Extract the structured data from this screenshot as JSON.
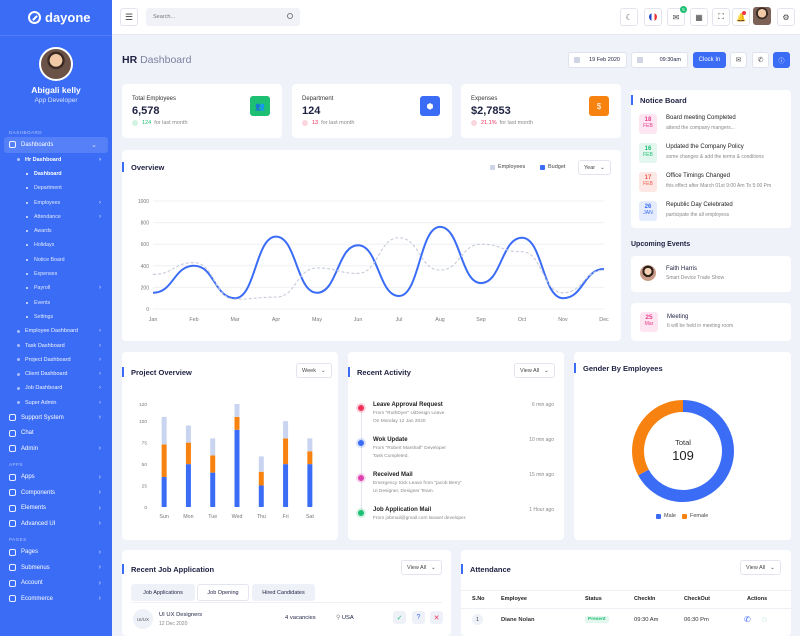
{
  "brand": {
    "name": "dayone"
  },
  "profile": {
    "name": "Abigali kelly",
    "role": "App Developer"
  },
  "sidebar": {
    "sections": {
      "dashboard": "DASHBOARD",
      "apps": "APPS",
      "pages": "PAGES"
    },
    "dashboards": "Dashboards",
    "hr_dashboard": "Hr Dashboard",
    "hr_items": [
      "Dashboard",
      "Department",
      "Employees",
      "Attendance",
      "Awards",
      "Holidays",
      "Notice Board",
      "Expenses",
      "Payroll",
      "Events",
      "Settings"
    ],
    "other_dash": [
      "Employee Dashboard",
      "Task Dashboard",
      "Project Dashboard",
      "Client Dashboard",
      "Job Dashboard",
      "Super Admin"
    ],
    "main_items": [
      "Support System",
      "Chat",
      "Admin"
    ],
    "app_items": [
      "Apps",
      "Components",
      "Elements",
      "Advanced UI"
    ],
    "page_items": [
      "Pages",
      "Submenus",
      "Account",
      "Ecommerce"
    ]
  },
  "topbar": {
    "search_placeholder": "Search...",
    "mail_badge": "5"
  },
  "header": {
    "title": "HR",
    "subtitle": "Dashboard",
    "date": "19 Feb 2020",
    "time": "09:30am",
    "clockin": "Clock In"
  },
  "stats": [
    {
      "label": "Total Employees",
      "value": "6,578",
      "change": "124",
      "period": "for last month",
      "color": "#1dbf73"
    },
    {
      "label": "Department",
      "value": "124",
      "change": "13",
      "period": "for last month",
      "color": "#3a6cf6"
    },
    {
      "label": "Expenses",
      "value": "$2,7853",
      "change": "21.1%",
      "period": "for last month",
      "color": "#f7820f"
    }
  ],
  "overview": {
    "title": "Overview",
    "legend": [
      "Employees",
      "Budget"
    ],
    "select": "Year"
  },
  "chart_data": [
    {
      "type": "line",
      "title": "Overview",
      "categories": [
        "Jan",
        "Feb",
        "Mar",
        "Apr",
        "May",
        "Jun",
        "Jul",
        "Aug",
        "Sep",
        "Oct",
        "Nov",
        "Dec"
      ],
      "ylim": [
        0,
        1000
      ],
      "yticks": [
        0,
        200,
        400,
        600,
        800,
        1000
      ],
      "series": [
        {
          "name": "Budget",
          "style": "solid",
          "values": [
            150,
            400,
            100,
            670,
            150,
            590,
            120,
            760,
            240,
            660,
            100,
            370
          ]
        },
        {
          "name": "Employees",
          "style": "dashed",
          "values": [
            320,
            430,
            90,
            110,
            380,
            330,
            660,
            360,
            600,
            530,
            150,
            360
          ]
        }
      ]
    },
    {
      "type": "bar",
      "title": "Project Overview",
      "categories": [
        "Sun",
        "Mon",
        "Tue",
        "Wed",
        "Thu",
        "Fri",
        "Sat"
      ],
      "ylim": [
        0,
        120
      ],
      "yticks": [
        0,
        25,
        50,
        75,
        100,
        120
      ],
      "series": [
        {
          "name": "blue",
          "values": [
            35,
            50,
            40,
            90,
            25,
            50,
            50
          ]
        },
        {
          "name": "orange",
          "values": [
            38,
            25,
            20,
            15,
            16,
            30,
            15
          ]
        },
        {
          "name": "light",
          "values": [
            32,
            20,
            20,
            15,
            18,
            20,
            15
          ]
        }
      ]
    },
    {
      "type": "pie",
      "title": "Gender By Employees",
      "center_label": "Total",
      "center_value": "109",
      "series": [
        {
          "name": "Male",
          "value": 73
        },
        {
          "name": "Female",
          "value": 36
        }
      ]
    }
  ],
  "project": {
    "title": "Project Overview",
    "select": "Week"
  },
  "activity": {
    "title": "Recent Activity",
    "select": "View All",
    "items": [
      {
        "title": "Leave Approval Request",
        "line1": "From \"RuthDyer\" UiDesign Leave",
        "line2": "On Monday 12 Jan 2020",
        "time": "6 min ago",
        "color": "#f0325b"
      },
      {
        "title": "Wok Update",
        "line1": "From \"Robert Marshall\" Developer",
        "line2": "Task Completed.",
        "time": "10 min ago",
        "color": "#3a6cf6"
      },
      {
        "title": "Received Mail",
        "line1": "Emergency Sick Leave from \"jacob Berry\"",
        "line2": "Ui Designer, Designer Team.",
        "time": "15 min ago",
        "color": "#e040b0"
      },
      {
        "title": "Job Application Mail",
        "line1": "From jobmail@gmail.com laravel developer.",
        "line2": "",
        "time": "1 Hour ago",
        "color": "#1dbf73"
      }
    ]
  },
  "gender": {
    "title": "Gender By Employees",
    "male": "Male",
    "female": "Female"
  },
  "notice": {
    "title": "Notice Board",
    "items": [
      {
        "day": "18",
        "mon": "FEB",
        "title": "Board meeting Completed",
        "sub": "attend the company mangers...",
        "bg": "#fde6f1",
        "fg": "#e83e8c"
      },
      {
        "day": "16",
        "mon": "FEB",
        "title": "Updated the Company Policy",
        "sub": "some changes & add the terms & conditions",
        "bg": "#e3f7ee",
        "fg": "#1dbf73"
      },
      {
        "day": "17",
        "mon": "FEB",
        "title": "Office Timings Changed",
        "sub": "this effect after March 01st 9:00 Am To 5:00 Pm",
        "bg": "#fde8e6",
        "fg": "#f05a4a"
      },
      {
        "day": "26",
        "mon": "JAN",
        "title": "Republic Day Celebrated",
        "sub": "participate the all employess",
        "bg": "#e4ecfe",
        "fg": "#3a6cf6"
      }
    ]
  },
  "events": {
    "title": "Upcoming Events",
    "faith": {
      "name": "Faith Harris",
      "sub": "Smart Device Trade Show"
    },
    "meeting": {
      "day": "25",
      "mon": "Mar",
      "title": "Meeting",
      "sub": "It will be held in meeting room"
    }
  },
  "jobs": {
    "title": "Recent Job Application",
    "select": "View All",
    "tabs": [
      "Job Applications",
      "Job Opening",
      "Hired Candidates"
    ],
    "row": {
      "icon": "UI/UX",
      "title": "UI UX Designers",
      "date": "12 Dec 2020",
      "vacancies": "4 vacancies",
      "location": "USA"
    }
  },
  "attendance": {
    "title": "Attendance",
    "select": "View All",
    "headers": [
      "S.No",
      "Employee",
      "Status",
      "CheckIn",
      "CheckOut",
      "Actions"
    ],
    "row": {
      "no": "1",
      "name": "Diane Nolan",
      "status": "Present",
      "in": "09:30 Am",
      "out": "06:30 Pm"
    }
  }
}
